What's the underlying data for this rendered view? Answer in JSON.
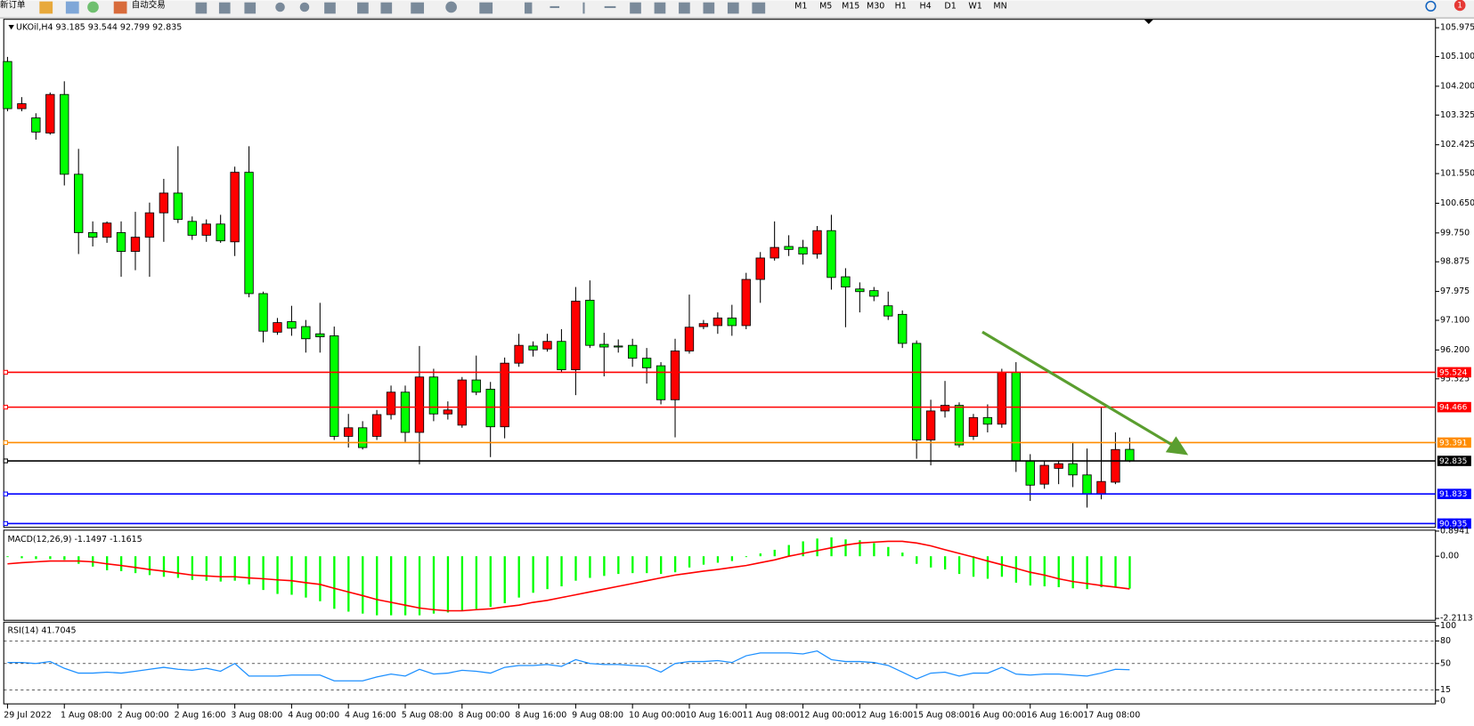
{
  "toolbar": {
    "new_order": "新订单",
    "auto_trading": "自动交易",
    "timeframes": [
      "M1",
      "M5",
      "M15",
      "M30",
      "H1",
      "H4",
      "D1",
      "W1",
      "MN"
    ],
    "notifications": "1"
  },
  "chart_data": [
    {
      "type": "candlestick",
      "title": "UKOil,H4  93.185 93.544 92.799 92.835",
      "categories": [
        "29 Jul 2022",
        null,
        null,
        null,
        "1 Aug 08:00",
        null,
        null,
        null,
        "2 Aug 00:00",
        null,
        null,
        null,
        "2 Aug 16:00",
        null,
        null,
        null,
        "3 Aug 08:00",
        null,
        null,
        null,
        "4 Aug 00:00",
        null,
        null,
        null,
        "4 Aug 16:00",
        null,
        null,
        null,
        "5 Aug 08:00",
        null,
        null,
        null,
        "8 Aug 00:00",
        null,
        null,
        null,
        "8 Aug 16:00",
        null,
        null,
        null,
        "9 Aug 08:00",
        null,
        null,
        null,
        "10 Aug 00:00",
        null,
        null,
        null,
        "10 Aug 16:00",
        null,
        null,
        null,
        "11 Aug 08:00",
        null,
        null,
        null,
        "12 Aug 00:00",
        null,
        null,
        null,
        "12 Aug 16:00",
        null,
        null,
        null,
        "15 Aug 08:00",
        null,
        null,
        null,
        "16 Aug 00:00",
        null,
        null,
        null,
        "16 Aug 16:00",
        null,
        null,
        null,
        "17 Aug 08:00",
        null,
        null,
        null
      ],
      "open": [
        104.95,
        103.52,
        103.24,
        102.78,
        103.95,
        101.53,
        99.76,
        99.62,
        99.76,
        99.19,
        99.62,
        100.36,
        100.96,
        100.1,
        99.68,
        100.02,
        99.48,
        101.59,
        97.91,
        96.74,
        97.06,
        96.91,
        96.69,
        96.63,
        93.58,
        93.84,
        93.58,
        94.24,
        94.92,
        93.7,
        95.38,
        94.26,
        93.92,
        95.29,
        95.01,
        93.87,
        95.8,
        96.32,
        96.23,
        96.46,
        95.6,
        97.71,
        96.37,
        96.32,
        96.34,
        95.95,
        95.72,
        94.69,
        96.17,
        96.91,
        96.94,
        97.17,
        96.94,
        98.34,
        98.99,
        99.34,
        99.31,
        99.11,
        99.82,
        98.42,
        98.05,
        98.0,
        97.54,
        97.28,
        96.4,
        93.47,
        94.35,
        94.52,
        93.58,
        94.15,
        93.95,
        95.52,
        92.84,
        92.13,
        92.61,
        92.75,
        92.41,
        91.84,
        92.19,
        93.185
      ],
      "high": [
        105.09,
        103.87,
        103.38,
        104.01,
        104.35,
        102.3,
        100.1,
        100.1,
        100.1,
        100.39,
        100.67,
        101.39,
        102.38,
        100.25,
        100.16,
        100.3,
        101.76,
        102.38,
        97.97,
        97.17,
        97.54,
        97.11,
        97.63,
        96.91,
        94.26,
        94.04,
        94.38,
        95.12,
        95.12,
        96.32,
        95.63,
        94.64,
        95.38,
        96.03,
        95.23,
        95.97,
        96.69,
        96.46,
        96.69,
        96.83,
        98.11,
        98.31,
        96.72,
        96.52,
        96.54,
        96.26,
        95.83,
        96.54,
        97.88,
        97.11,
        97.34,
        97.57,
        98.54,
        99.17,
        100.1,
        99.68,
        99.54,
        99.96,
        100.3,
        98.68,
        98.25,
        98.11,
        97.97,
        97.4,
        96.49,
        94.69,
        95.26,
        94.61,
        94.26,
        94.55,
        95.63,
        95.83,
        93.04,
        92.84,
        92.84,
        93.41,
        93.21,
        94.46,
        93.7,
        93.544
      ],
      "low": [
        103.44,
        103.44,
        102.58,
        102.73,
        101.19,
        99.11,
        99.34,
        99.45,
        98.42,
        98.62,
        98.42,
        99.48,
        100.05,
        99.54,
        99.48,
        99.45,
        99.05,
        97.8,
        96.43,
        96.66,
        96.63,
        96.12,
        96.12,
        93.47,
        93.24,
        93.18,
        93.47,
        94.09,
        93.41,
        92.73,
        94.04,
        94.09,
        93.84,
        94.83,
        92.95,
        93.52,
        95.69,
        96.0,
        96.15,
        95.52,
        94.83,
        96.26,
        95.4,
        96.12,
        95.69,
        95.18,
        94.55,
        93.55,
        96.09,
        96.83,
        96.69,
        96.63,
        96.83,
        97.63,
        98.91,
        99.05,
        98.79,
        98.97,
        98.03,
        96.89,
        97.34,
        97.68,
        97.11,
        96.26,
        92.9,
        92.7,
        94.15,
        93.24,
        93.47,
        93.7,
        93.84,
        92.5,
        91.62,
        91.99,
        92.13,
        92.04,
        91.42,
        91.67,
        92.13,
        92.799
      ],
      "close": [
        103.52,
        103.67,
        102.81,
        103.95,
        101.53,
        99.76,
        99.62,
        100.05,
        99.19,
        99.62,
        100.36,
        100.96,
        100.16,
        99.68,
        100.02,
        99.51,
        101.59,
        97.91,
        96.77,
        97.03,
        96.86,
        96.54,
        96.6,
        93.58,
        93.84,
        93.24,
        94.24,
        94.92,
        93.7,
        95.38,
        94.26,
        94.38,
        95.29,
        94.92,
        93.87,
        95.8,
        96.34,
        96.2,
        96.46,
        95.6,
        97.68,
        96.34,
        96.29,
        96.29,
        95.95,
        95.66,
        94.69,
        96.17,
        96.89,
        97.0,
        97.17,
        96.94,
        98.34,
        98.99,
        99.31,
        99.25,
        99.11,
        99.82,
        98.4,
        98.11,
        97.97,
        97.83,
        97.23,
        96.4,
        93.47,
        94.35,
        94.52,
        93.32,
        94.15,
        93.95,
        95.52,
        92.84,
        92.1,
        92.7,
        92.75,
        92.41,
        91.84,
        92.21,
        93.18,
        92.835
      ],
      "up_color": "#ff0000",
      "down_color": "#00ff00",
      "ylim": [
        90.82,
        106.23
      ],
      "yticks": [
        105.975,
        {
          "value": 105.1,
          "label": "105.100"
        },
        {
          "value": 104.2,
          "label": "104.200"
        },
        103.325,
        102.425,
        {
          "value": 101.55,
          "label": "101.550"
        },
        {
          "value": 100.65,
          "label": "100.650"
        },
        {
          "value": 99.75,
          "label": "99.750"
        },
        98.875,
        97.975,
        {
          "value": 97.1,
          "label": "97.100"
        },
        {
          "value": 96.2,
          "label": "96.200"
        },
        95.325
      ],
      "hlines": [
        {
          "value": 95.524,
          "color": "#ff0000"
        },
        {
          "value": 94.466,
          "color": "#ff0000"
        },
        {
          "value": 93.391,
          "color": "#ff8c00"
        },
        {
          "value": 92.835,
          "color": "#000000"
        },
        {
          "value": 91.833,
          "color": "#0000ff"
        },
        {
          "value": 90.935,
          "color": "#0000ff"
        }
      ]
    },
    {
      "type": "macd",
      "title": "MACD(12,26,9) -1.1497 -1.1615",
      "ylim": [
        -2.2113,
        0.8941
      ],
      "yticks": [
        0.8941,
        {
          "value": 0,
          "label": "0.00"
        },
        -2.2113
      ],
      "series": [
        {
          "type": "bar",
          "color": "#00ff00",
          "values": [
            -0.03,
            -0.07,
            -0.1,
            -0.1,
            -0.13,
            -0.27,
            -0.37,
            -0.5,
            -0.53,
            -0.6,
            -0.67,
            -0.73,
            -0.77,
            -0.84,
            -0.87,
            -0.9,
            -0.87,
            -1.0,
            -1.2,
            -1.34,
            -1.37,
            -1.47,
            -1.6,
            -1.87,
            -1.97,
            -2.04,
            -2.1,
            -2.1,
            -2.1,
            -2.1,
            -2.04,
            -2.0,
            -1.94,
            -1.87,
            -1.8,
            -1.67,
            -1.47,
            -1.3,
            -1.17,
            -1.07,
            -0.87,
            -0.77,
            -0.7,
            -0.63,
            -0.6,
            -0.6,
            -0.63,
            -0.57,
            -0.4,
            -0.3,
            -0.23,
            -0.17,
            -0.03,
            0.1,
            0.23,
            0.4,
            0.53,
            0.63,
            0.67,
            0.6,
            0.57,
            0.47,
            0.33,
            0.13,
            -0.27,
            -0.4,
            -0.47,
            -0.63,
            -0.73,
            -0.8,
            -0.73,
            -0.94,
            -1.04,
            -1.07,
            -1.1,
            -1.14,
            -1.17,
            -1.1,
            -1.1,
            -1.1497
          ]
        },
        {
          "type": "line",
          "color": "#ff0000",
          "values": [
            -0.27,
            -0.23,
            -0.2,
            -0.17,
            -0.17,
            -0.17,
            -0.2,
            -0.27,
            -0.33,
            -0.4,
            -0.47,
            -0.53,
            -0.6,
            -0.67,
            -0.7,
            -0.73,
            -0.73,
            -0.77,
            -0.8,
            -0.84,
            -0.87,
            -0.94,
            -1.0,
            -1.14,
            -1.27,
            -1.4,
            -1.54,
            -1.64,
            -1.74,
            -1.84,
            -1.9,
            -1.94,
            -1.94,
            -1.9,
            -1.87,
            -1.8,
            -1.74,
            -1.64,
            -1.57,
            -1.47,
            -1.37,
            -1.27,
            -1.17,
            -1.07,
            -0.97,
            -0.87,
            -0.77,
            -0.67,
            -0.6,
            -0.53,
            -0.47,
            -0.4,
            -0.33,
            -0.23,
            -0.13,
            0.0,
            0.1,
            0.2,
            0.3,
            0.4,
            0.47,
            0.5,
            0.53,
            0.53,
            0.47,
            0.37,
            0.23,
            0.1,
            -0.03,
            -0.17,
            -0.3,
            -0.43,
            -0.57,
            -0.67,
            -0.8,
            -0.9,
            -0.97,
            -1.04,
            -1.1,
            -1.1615
          ]
        }
      ]
    },
    {
      "type": "line",
      "title": "RSI(14) 41.7045",
      "color": "#1e90ff",
      "ylim": [
        0,
        100
      ],
      "yticks": [
        100,
        80,
        50,
        15,
        0
      ],
      "grid": true,
      "values": [
        51.3,
        51.3,
        50.0,
        52.6,
        43.6,
        37.2,
        37.2,
        38.5,
        37.2,
        39.7,
        42.3,
        44.9,
        42.3,
        41.0,
        43.6,
        39.7,
        50.0,
        33.3,
        33.3,
        33.3,
        34.6,
        34.6,
        34.6,
        26.9,
        26.9,
        26.9,
        32.1,
        35.9,
        33.3,
        42.3,
        35.9,
        37.2,
        41.0,
        39.7,
        37.2,
        44.9,
        47.4,
        47.4,
        48.7,
        46.2,
        55.1,
        50.0,
        48.7,
        48.7,
        47.4,
        46.2,
        38.5,
        50.0,
        52.6,
        52.6,
        53.8,
        51.3,
        60.3,
        64.1,
        64.1,
        64.1,
        62.8,
        66.7,
        55.1,
        52.6,
        52.6,
        51.3,
        47.4,
        38.5,
        29.5,
        37.2,
        38.5,
        33.3,
        37.2,
        37.2,
        44.9,
        35.9,
        34.6,
        35.9,
        35.9,
        34.6,
        33.3,
        37.2,
        42.3,
        41.7045
      ]
    }
  ]
}
